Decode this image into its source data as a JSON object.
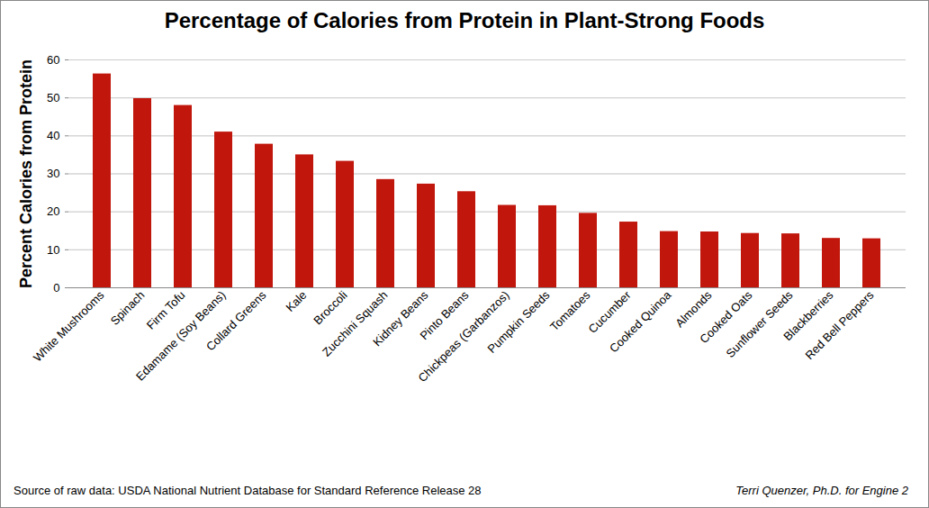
{
  "chart_data": {
    "type": "bar",
    "title": "Percentage of Calories from Protein in Plant-Strong Foods",
    "y_label": "Percent Calories from Protein",
    "categories": [
      "White Mushrooms",
      "Spinach",
      "Firm Tofu",
      "Edamame (Soy Beans)",
      "Collard Greens",
      "Kale",
      "Broccoli",
      "Zucchini Squash",
      "Kidney Beans",
      "Pinto Beans",
      "Chickpeas (Garbanzos)",
      "Pumpkin Seeds",
      "Tomatoes",
      "Cucumber",
      "Cooked Quinoa",
      "Almonds",
      "Cooked Oats",
      "Sunflower Seeds",
      "Blackberries",
      "Red Bell Peppers"
    ],
    "values": [
      56.3,
      49.8,
      48.0,
      41.0,
      37.8,
      35.0,
      33.3,
      28.5,
      27.3,
      25.3,
      21.7,
      21.6,
      19.6,
      17.3,
      14.8,
      14.7,
      14.3,
      14.2,
      13.0,
      12.9
    ],
    "color": "#c0160c",
    "ylim": [
      0,
      60
    ],
    "yticks": [
      0,
      10,
      20,
      30,
      40,
      50,
      60
    ],
    "grid": true,
    "annotations": [
      "Source of raw data: USDA National Nutrient Database for Standard Reference Release 28",
      "Terri Quenzer, Ph.D. for Engine 2"
    ]
  }
}
